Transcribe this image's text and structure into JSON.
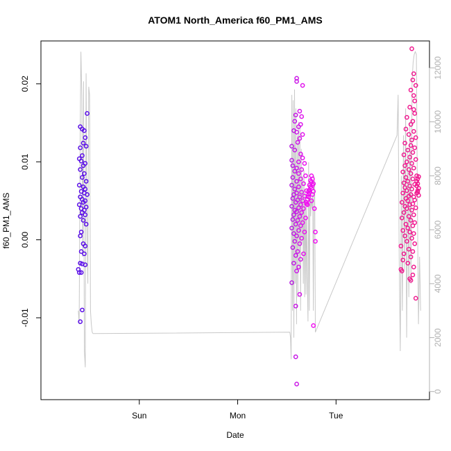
{
  "chart_data": {
    "type": "scatter",
    "title": "ATOM1 North_America f60_PM1_AMS",
    "xlabel": "Date",
    "ylabel": "f60_PM1_AMS",
    "x_ticks": [
      "Sun",
      "Mon",
      "Tue"
    ],
    "y_ticks": [
      "-0.01",
      "0.00",
      "0.01",
      "0.02"
    ],
    "y2_ticks": [
      "0",
      "2000",
      "4000",
      "6000",
      "8000",
      "10000",
      "12000"
    ],
    "ylim": [
      -0.0205,
      0.0255
    ],
    "y2lim": [
      -300,
      13000
    ],
    "xlim": [
      -1.0,
      2.95
    ],
    "grid": false,
    "colors": {
      "series_day1": "#5a0de8",
      "series_day2_a": "#b020e0",
      "series_day2_b": "#f010f0",
      "series_day3": "#f01a90",
      "altitude_line": "#c8c8c8",
      "right_axis": "#b0b0b0"
    },
    "series": [
      {
        "color_key": "series_day1",
        "x_range": [
          -0.62,
          -0.49
        ],
        "points": [
          [
            -0.6,
            0.0145
          ],
          [
            -0.58,
            0.0142
          ],
          [
            -0.56,
            0.014
          ],
          [
            -0.53,
            0.0162
          ],
          [
            -0.55,
            0.0131
          ],
          [
            -0.57,
            0.0124
          ],
          [
            -0.54,
            0.012
          ],
          [
            -0.6,
            0.0118
          ],
          [
            -0.58,
            0.0108
          ],
          [
            -0.61,
            0.0104
          ],
          [
            -0.59,
            0.0101
          ],
          [
            -0.55,
            0.0098
          ],
          [
            -0.57,
            0.0095
          ],
          [
            -0.6,
            0.009
          ],
          [
            -0.56,
            0.0085
          ],
          [
            -0.58,
            0.008
          ],
          [
            -0.54,
            0.0075
          ],
          [
            -0.61,
            0.007
          ],
          [
            -0.57,
            0.0068
          ],
          [
            -0.55,
            0.0065
          ],
          [
            -0.59,
            0.0062
          ],
          [
            -0.56,
            0.006
          ],
          [
            -0.53,
            0.0058
          ],
          [
            -0.6,
            0.0055
          ],
          [
            -0.58,
            0.0052
          ],
          [
            -0.55,
            0.005
          ],
          [
            -0.57,
            0.0048
          ],
          [
            -0.61,
            0.0045
          ],
          [
            -0.54,
            0.0042
          ],
          [
            -0.59,
            0.004
          ],
          [
            -0.56,
            0.0038
          ],
          [
            -0.58,
            0.0035
          ],
          [
            -0.55,
            0.0032
          ],
          [
            -0.6,
            0.003
          ],
          [
            -0.57,
            0.0025
          ],
          [
            -0.54,
            0.002
          ],
          [
            -0.59,
            0.001
          ],
          [
            -0.6,
            0.0005
          ],
          [
            -0.57,
            -0.0005
          ],
          [
            -0.55,
            -0.0008
          ],
          [
            -0.59,
            -0.0015
          ],
          [
            -0.56,
            -0.0018
          ],
          [
            -0.6,
            -0.003
          ],
          [
            -0.58,
            -0.0031
          ],
          [
            -0.55,
            -0.0032
          ],
          [
            -0.62,
            -0.0038
          ],
          [
            -0.61,
            -0.0042
          ],
          [
            -0.59,
            -0.0042
          ],
          [
            -0.58,
            -0.009
          ],
          [
            -0.6,
            -0.0105
          ]
        ]
      },
      {
        "color_key": "series_day2_b",
        "x_range": [
          1.53,
          1.8
        ],
        "points": [
          [
            1.6,
            0.0207
          ],
          [
            1.6,
            0.0203
          ],
          [
            1.66,
            0.0198
          ],
          [
            1.63,
            0.0165
          ],
          [
            1.59,
            0.016
          ],
          [
            1.65,
            0.0158
          ],
          [
            1.58,
            0.0152
          ],
          [
            1.64,
            0.0148
          ],
          [
            1.62,
            0.0145
          ],
          [
            1.57,
            0.014
          ],
          [
            1.6,
            0.0138
          ],
          [
            1.66,
            0.0135
          ],
          [
            1.63,
            0.013
          ],
          [
            1.61,
            0.0125
          ],
          [
            1.55,
            0.012
          ],
          [
            1.58,
            0.0115
          ],
          [
            1.64,
            0.011
          ],
          [
            1.66,
            0.0105
          ],
          [
            1.55,
            0.0102
          ],
          [
            1.62,
            0.01
          ],
          [
            1.68,
            0.0098
          ],
          [
            1.56,
            0.0095
          ],
          [
            1.6,
            0.0092
          ],
          [
            1.65,
            0.009
          ],
          [
            1.58,
            0.0088
          ],
          [
            1.62,
            0.0085
          ],
          [
            1.69,
            0.0082
          ],
          [
            1.56,
            0.008
          ],
          [
            1.64,
            0.0078
          ],
          [
            1.6,
            0.0075
          ],
          [
            1.67,
            0.0072
          ],
          [
            1.55,
            0.007
          ],
          [
            1.62,
            0.0068
          ],
          [
            1.58,
            0.0065
          ],
          [
            1.7,
            0.0063
          ],
          [
            1.65,
            0.0061
          ],
          [
            1.6,
            0.006
          ],
          [
            1.57,
            0.0058
          ],
          [
            1.68,
            0.0056
          ],
          [
            1.63,
            0.0055
          ],
          [
            1.56,
            0.0053
          ],
          [
            1.61,
            0.0051
          ],
          [
            1.66,
            0.005
          ],
          [
            1.59,
            0.0048
          ],
          [
            1.7,
            0.0046
          ],
          [
            1.64,
            0.0045
          ],
          [
            1.55,
            0.0043
          ],
          [
            1.62,
            0.0041
          ],
          [
            1.67,
            0.004
          ],
          [
            1.58,
            0.0038
          ],
          [
            1.6,
            0.0036
          ],
          [
            1.65,
            0.0035
          ],
          [
            1.57,
            0.0032
          ],
          [
            1.63,
            0.003
          ],
          [
            1.69,
            0.0028
          ],
          [
            1.56,
            0.0026
          ],
          [
            1.61,
            0.0025
          ],
          [
            1.66,
            0.0022
          ],
          [
            1.59,
            0.002
          ],
          [
            1.64,
            0.0018
          ],
          [
            1.55,
            0.0015
          ],
          [
            1.62,
            0.0012
          ],
          [
            1.68,
            0.001
          ],
          [
            1.57,
            0.0008
          ],
          [
            1.6,
            0.0005
          ],
          [
            1.65,
            0.0002
          ],
          [
            1.58,
            -0.0002
          ],
          [
            1.63,
            -0.0005
          ],
          [
            1.56,
            -0.001
          ],
          [
            1.61,
            -0.0015
          ],
          [
            1.67,
            -0.0018
          ],
          [
            1.59,
            -0.002
          ],
          [
            1.64,
            -0.0025
          ],
          [
            1.57,
            -0.003
          ],
          [
            1.62,
            -0.0035
          ],
          [
            1.6,
            -0.004
          ],
          [
            1.55,
            -0.0055
          ],
          [
            1.63,
            -0.007
          ],
          [
            1.59,
            -0.0085
          ],
          [
            1.77,
            -0.011
          ],
          [
            1.59,
            -0.015
          ],
          [
            1.6,
            -0.0185
          ],
          [
            1.75,
            0.0082
          ],
          [
            1.76,
            0.0078
          ],
          [
            1.75,
            0.0074
          ],
          [
            1.76,
            0.007
          ],
          [
            1.75,
            0.0066
          ],
          [
            1.77,
            0.0062
          ],
          [
            1.76,
            0.0058
          ],
          [
            1.74,
            0.0076
          ],
          [
            1.77,
            0.0072
          ],
          [
            1.74,
            0.0068
          ],
          [
            1.73,
            0.0064
          ],
          [
            1.73,
            0.006
          ],
          [
            1.72,
            0.0058
          ],
          [
            1.72,
            0.0055
          ],
          [
            1.71,
            0.0052
          ],
          [
            1.75,
            0.005
          ],
          [
            1.7,
            0.0048
          ],
          [
            1.71,
            0.0045
          ],
          [
            1.72,
            0.0062
          ],
          [
            1.73,
            0.007
          ],
          [
            1.78,
            0.004
          ],
          [
            1.79,
            0.001
          ],
          [
            1.79,
            -0.0002
          ]
        ]
      },
      {
        "color_key": "series_day3",
        "x_range": [
          2.64,
          2.85
        ],
        "points": [
          [
            2.77,
            0.0245
          ],
          [
            2.79,
            0.0213
          ],
          [
            2.78,
            0.0205
          ],
          [
            2.81,
            0.0198
          ],
          [
            2.76,
            0.0192
          ],
          [
            2.79,
            0.0185
          ],
          [
            2.8,
            0.0178
          ],
          [
            2.75,
            0.017
          ],
          [
            2.79,
            0.0167
          ],
          [
            2.8,
            0.0162
          ],
          [
            2.72,
            0.0157
          ],
          [
            2.78,
            0.0152
          ],
          [
            2.76,
            0.0148
          ],
          [
            2.71,
            0.0142
          ],
          [
            2.79,
            0.0139
          ],
          [
            2.74,
            0.0135
          ],
          [
            2.81,
            0.0131
          ],
          [
            2.77,
            0.0128
          ],
          [
            2.7,
            0.0124
          ],
          [
            2.76,
            0.0121
          ],
          [
            2.8,
            0.0118
          ],
          [
            2.73,
            0.0115
          ],
          [
            2.78,
            0.0112
          ],
          [
            2.69,
            0.0109
          ],
          [
            2.75,
            0.0106
          ],
          [
            2.81,
            0.0103
          ],
          [
            2.72,
            0.01
          ],
          [
            2.77,
            0.0098
          ],
          [
            2.7,
            0.0095
          ],
          [
            2.79,
            0.0092
          ],
          [
            2.74,
            0.009
          ],
          [
            2.68,
            0.0087
          ],
          [
            2.76,
            0.0085
          ],
          [
            2.82,
            0.0082
          ],
          [
            2.71,
            0.008
          ],
          [
            2.78,
            0.0078
          ],
          [
            2.73,
            0.0075
          ],
          [
            2.69,
            0.0073
          ],
          [
            2.8,
            0.0071
          ],
          [
            2.75,
            0.0069
          ],
          [
            2.7,
            0.0067
          ],
          [
            2.77,
            0.0065
          ],
          [
            2.72,
            0.0063
          ],
          [
            2.83,
            0.0061
          ],
          [
            2.68,
            0.006
          ],
          [
            2.76,
            0.0058
          ],
          [
            2.74,
            0.0056
          ],
          [
            2.79,
            0.0055
          ],
          [
            2.71,
            0.0053
          ],
          [
            2.8,
            0.0051
          ],
          [
            2.73,
            0.005
          ],
          [
            2.67,
            0.0048
          ],
          [
            2.78,
            0.0046
          ],
          [
            2.75,
            0.0045
          ],
          [
            2.7,
            0.0043
          ],
          [
            2.81,
            0.0041
          ],
          [
            2.72,
            0.004
          ],
          [
            2.77,
            0.0038
          ],
          [
            2.69,
            0.0035
          ],
          [
            2.79,
            0.0032
          ],
          [
            2.74,
            0.003
          ],
          [
            2.67,
            0.0028
          ],
          [
            2.76,
            0.0025
          ],
          [
            2.8,
            0.0022
          ],
          [
            2.71,
            0.002
          ],
          [
            2.78,
            0.0018
          ],
          [
            2.73,
            0.0015
          ],
          [
            2.68,
            0.0012
          ],
          [
            2.75,
            0.001
          ],
          [
            2.79,
            0.0008
          ],
          [
            2.7,
            0.0005
          ],
          [
            2.77,
            0.0002
          ],
          [
            2.72,
            -0.0002
          ],
          [
            2.8,
            -0.0005
          ],
          [
            2.66,
            -0.0008
          ],
          [
            2.74,
            -0.0012
          ],
          [
            2.78,
            -0.0015
          ],
          [
            2.69,
            -0.0018
          ],
          [
            2.76,
            -0.0022
          ],
          [
            2.68,
            -0.0026
          ],
          [
            2.73,
            -0.003
          ],
          [
            2.79,
            -0.0035
          ],
          [
            2.66,
            -0.0038
          ],
          [
            2.67,
            -0.004
          ],
          [
            2.78,
            -0.0045
          ],
          [
            2.75,
            -0.005
          ],
          [
            2.76,
            -0.0052
          ],
          [
            2.81,
            -0.0075
          ],
          [
            2.82,
            0.0075
          ],
          [
            2.83,
            0.0072
          ],
          [
            2.82,
            0.0069
          ],
          [
            2.84,
            0.0066
          ],
          [
            2.83,
            0.0063
          ],
          [
            2.82,
            0.006
          ],
          [
            2.84,
            0.0057
          ],
          [
            2.83,
            0.0078
          ],
          [
            2.84,
            0.0081
          ]
        ]
      }
    ],
    "altitude_line": {
      "axis": "right",
      "segments": [
        {
          "x_start": -0.62,
          "x_end": -0.47,
          "values": [
            3000,
            2500,
            9000,
            12600,
            11000,
            5000,
            11500,
            1500,
            900,
            11800,
            6000,
            4000,
            11300,
            11000,
            3000,
            2500,
            2200,
            2150
          ]
        },
        {
          "x_start": -0.47,
          "x_end": 1.53,
          "values": [
            2150,
            2200
          ]
        },
        {
          "x_start": 1.53,
          "x_end": 1.79,
          "values": [
            2200,
            2000,
            1200,
            11000,
            3000,
            10800,
            2000,
            11200,
            4000,
            10500,
            2500,
            9500,
            3500,
            10000,
            4500,
            9800,
            3000,
            9000,
            5500,
            8000,
            4000,
            8200,
            3500,
            7500,
            3600,
            7000,
            4200,
            2600,
            8500,
            3000,
            7800,
            6500,
            7200,
            6800,
            7400,
            3000,
            8000,
            7600,
            2200
          ]
        },
        {
          "x_start": 1.79,
          "x_end": 2.62,
          "values": [
            2200,
            9500
          ]
        },
        {
          "x_start": 2.62,
          "x_end": 2.86,
          "values": [
            9500,
            11000,
            5000,
            1500,
            8000,
            3000,
            9500,
            4500,
            10500,
            2000,
            9000,
            3500,
            10000,
            4000,
            11500,
            12200,
            12500,
            12600,
            12500,
            7000,
            2500,
            5000,
            3000
          ]
        }
      ]
    }
  }
}
